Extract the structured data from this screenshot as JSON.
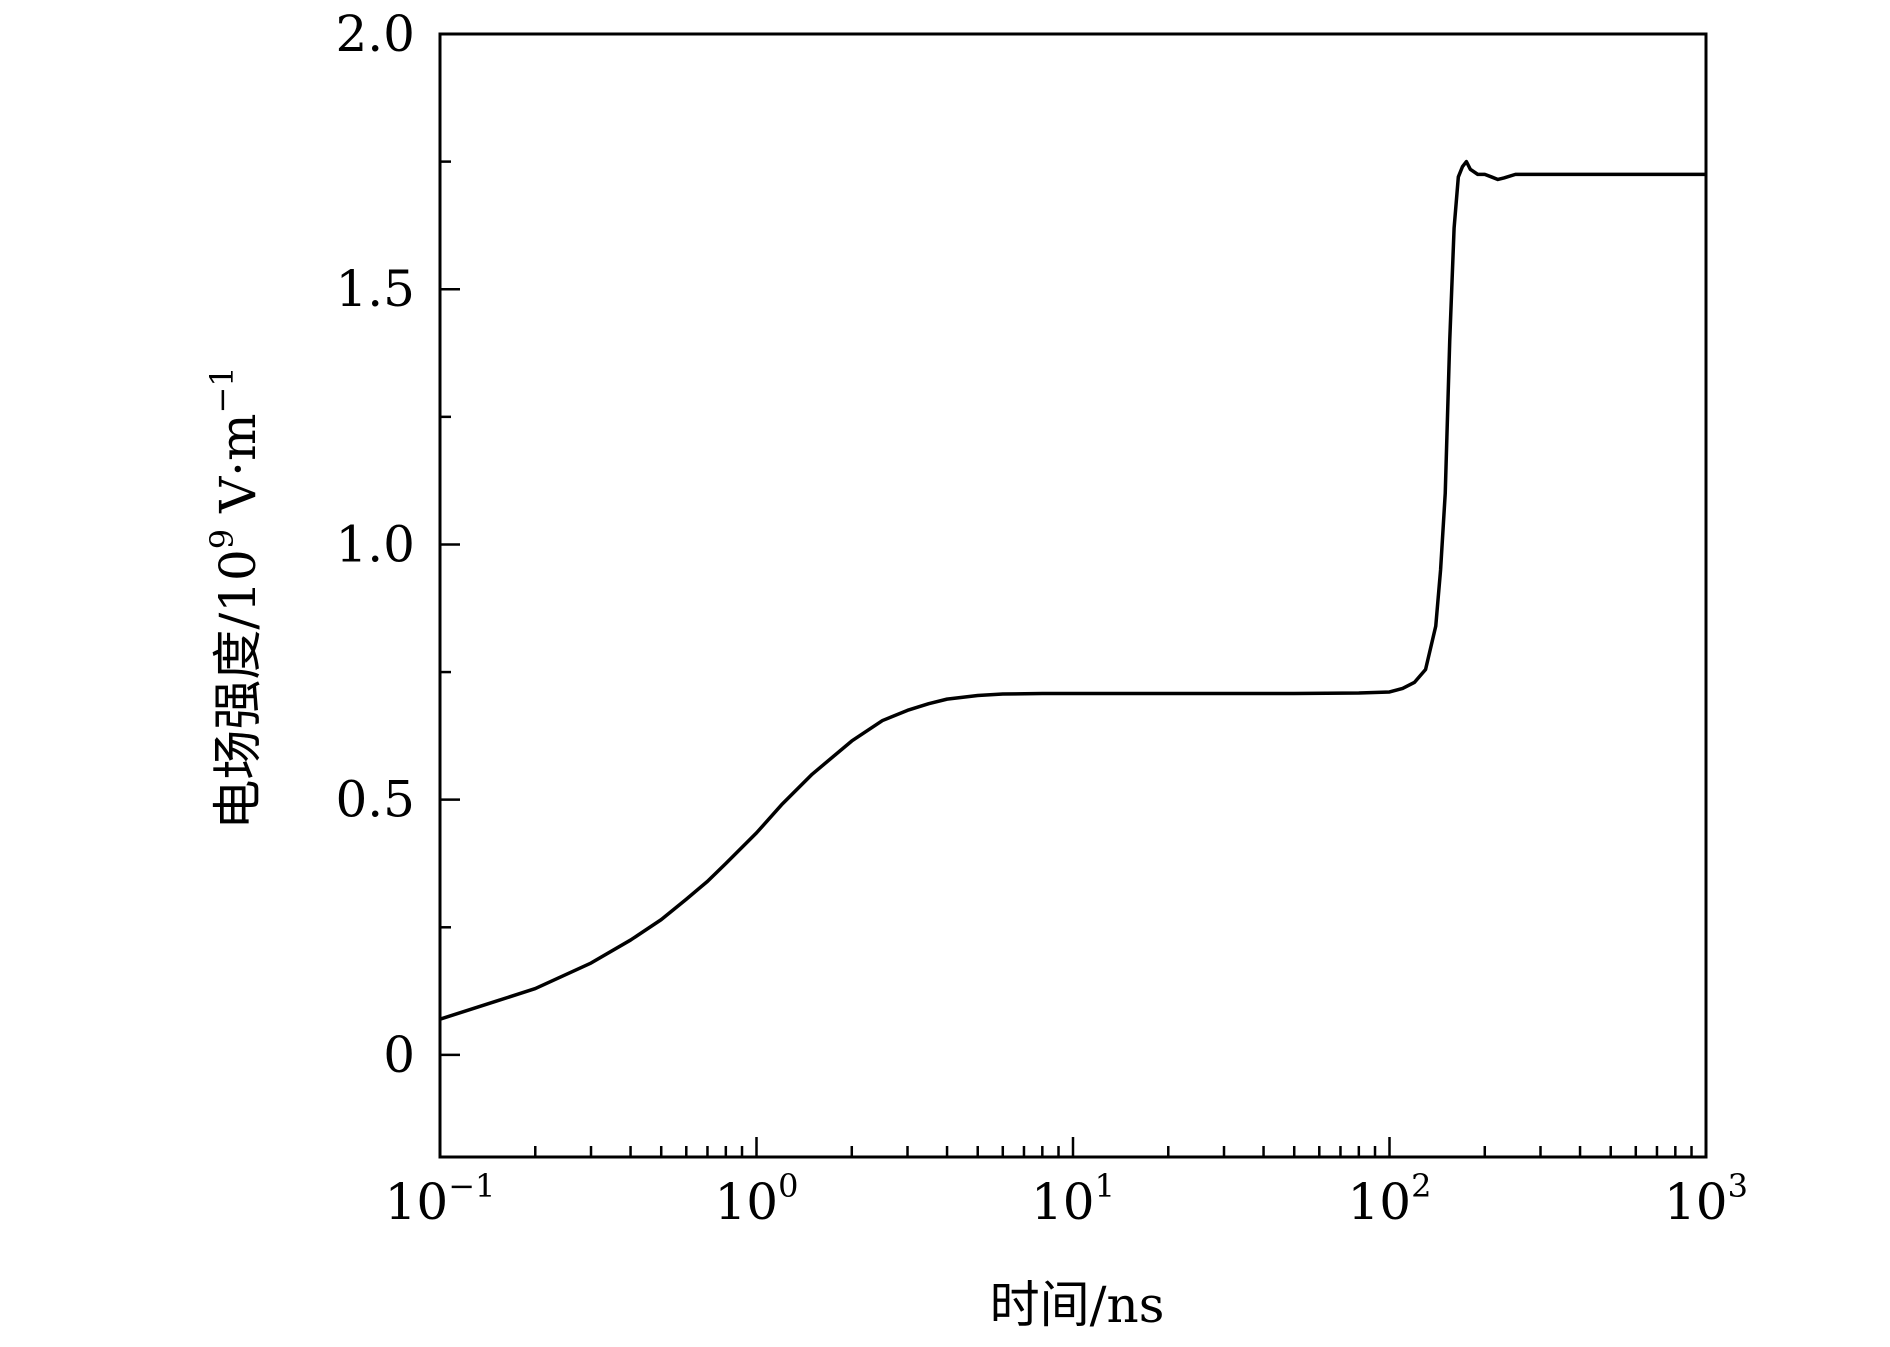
{
  "chart_data": {
    "type": "line",
    "title": "",
    "xlabel": "时间/ns",
    "ylabel": "电场强度/10⁹ V·m⁻¹",
    "ylabel_parts": {
      "main": "电场强度/10",
      "exp": "9",
      "unit": " V·m",
      "unit_exp": "−1"
    },
    "xlabel_parts": {
      "main": "时间/ns"
    },
    "x_scale": "log",
    "xlim": [
      0.1,
      1000
    ],
    "ylim": [
      -0.2,
      2.0
    ],
    "x_ticks": [
      {
        "value": 0.1,
        "base": "10",
        "exp": "−1"
      },
      {
        "value": 1,
        "base": "10",
        "exp": "0"
      },
      {
        "value": 10,
        "base": "10",
        "exp": "1"
      },
      {
        "value": 100,
        "base": "10",
        "exp": "2"
      },
      {
        "value": 1000,
        "base": "10",
        "exp": "3"
      }
    ],
    "y_ticks": [
      {
        "value": 0,
        "label": "0"
      },
      {
        "value": 0.5,
        "label": "0.5"
      },
      {
        "value": 1.0,
        "label": "1.0"
      },
      {
        "value": 1.5,
        "label": "1.5"
      },
      {
        "value": 2.0,
        "label": "2.0"
      }
    ],
    "y_minor_ticks": [
      0.25,
      0.75,
      1.25,
      1.75
    ],
    "grid": false,
    "legend": "none",
    "line_color": "#000000",
    "series": [
      {
        "x": [
          0.1,
          0.15,
          0.2,
          0.3,
          0.4,
          0.5,
          0.6,
          0.7,
          0.8,
          1.0,
          1.2,
          1.5,
          2.0,
          2.5,
          3.0,
          3.5,
          4.0,
          5.0,
          6.0,
          8.0,
          10,
          20,
          50,
          80,
          100,
          110,
          120,
          130,
          140,
          145,
          150,
          155,
          160,
          165,
          170,
          175,
          180,
          190,
          200,
          210,
          220,
          230,
          250,
          300,
          500,
          1000
        ],
        "y": [
          0.07,
          0.105,
          0.13,
          0.18,
          0.225,
          0.265,
          0.305,
          0.34,
          0.375,
          0.435,
          0.49,
          0.55,
          0.615,
          0.655,
          0.675,
          0.688,
          0.697,
          0.704,
          0.707,
          0.708,
          0.708,
          0.708,
          0.708,
          0.709,
          0.711,
          0.718,
          0.73,
          0.755,
          0.84,
          0.95,
          1.1,
          1.4,
          1.62,
          1.72,
          1.74,
          1.75,
          1.735,
          1.725,
          1.725,
          1.72,
          1.715,
          1.718,
          1.725,
          1.725,
          1.725,
          1.725
        ]
      }
    ]
  }
}
